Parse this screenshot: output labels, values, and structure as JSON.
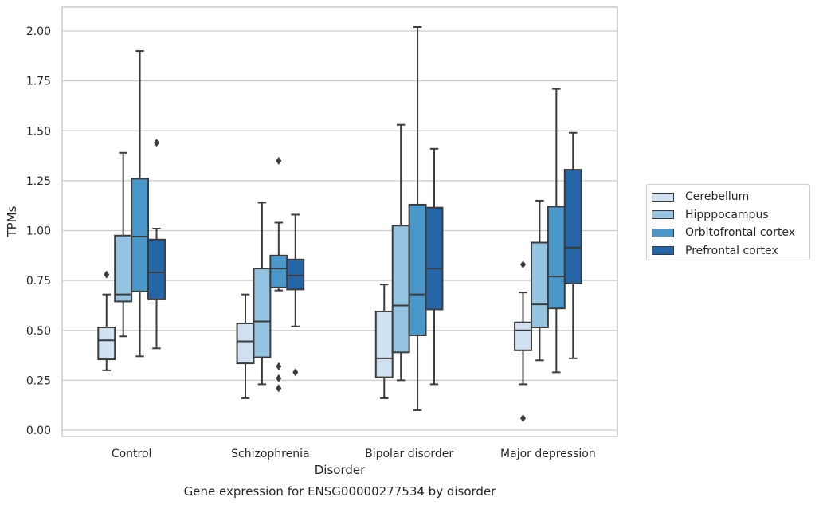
{
  "chart_data": {
    "type": "box",
    "title": "Gene expression for ENSG00000277534 by disorder",
    "xlabel": "Disorder",
    "ylabel": "TPMs",
    "ylim": [
      -0.03,
      2.12
    ],
    "yticks": [
      "0.00",
      "0.25",
      "0.50",
      "0.75",
      "1.00",
      "1.25",
      "1.50",
      "1.75",
      "2.00"
    ],
    "categories": [
      "Control",
      "Schizophrenia",
      "Bipolar disorder",
      "Major depression"
    ],
    "grid": "horizontal",
    "legend_placement": "right, outside",
    "series": [
      {
        "name": "Cerebellum",
        "color": "#d0e1f2",
        "boxes": [
          {
            "whislo": 0.3,
            "q1": 0.355,
            "med": 0.45,
            "q3": 0.515,
            "whishi": 0.68,
            "fliers": [
              0.78
            ]
          },
          {
            "whislo": 0.16,
            "q1": 0.335,
            "med": 0.445,
            "q3": 0.535,
            "whishi": 0.68,
            "fliers": []
          },
          {
            "whislo": 0.16,
            "q1": 0.265,
            "med": 0.36,
            "q3": 0.595,
            "whishi": 0.73,
            "fliers": []
          },
          {
            "whislo": 0.23,
            "q1": 0.4,
            "med": 0.5,
            "q3": 0.54,
            "whishi": 0.69,
            "fliers": [
              0.06,
              0.83
            ]
          }
        ]
      },
      {
        "name": "Hipppocampus",
        "color": "#94c4df",
        "boxes": [
          {
            "whislo": 0.47,
            "q1": 0.645,
            "med": 0.68,
            "q3": 0.975,
            "whishi": 1.39,
            "fliers": []
          },
          {
            "whislo": 0.23,
            "q1": 0.365,
            "med": 0.545,
            "q3": 0.81,
            "whishi": 1.14,
            "fliers": []
          },
          {
            "whislo": 0.25,
            "q1": 0.39,
            "med": 0.625,
            "q3": 1.025,
            "whishi": 1.53,
            "fliers": []
          },
          {
            "whislo": 0.35,
            "q1": 0.515,
            "med": 0.63,
            "q3": 0.94,
            "whishi": 1.15,
            "fliers": []
          }
        ]
      },
      {
        "name": "Orbitofrontal cortex",
        "color": "#4a98c9",
        "boxes": [
          {
            "whislo": 0.37,
            "q1": 0.695,
            "med": 0.97,
            "q3": 1.26,
            "whishi": 1.9,
            "fliers": []
          },
          {
            "whislo": 0.7,
            "q1": 0.715,
            "med": 0.81,
            "q3": 0.875,
            "whishi": 1.04,
            "fliers": [
              0.21,
              0.26,
              0.32,
              1.35
            ]
          },
          {
            "whislo": 0.1,
            "q1": 0.475,
            "med": 0.68,
            "q3": 1.13,
            "whishi": 2.02,
            "fliers": []
          },
          {
            "whislo": 0.29,
            "q1": 0.61,
            "med": 0.77,
            "q3": 1.12,
            "whishi": 1.71,
            "fliers": []
          }
        ]
      },
      {
        "name": "Prefrontal cortex",
        "color": "#2566a8",
        "boxes": [
          {
            "whislo": 0.41,
            "q1": 0.655,
            "med": 0.79,
            "q3": 0.955,
            "whishi": 1.01,
            "fliers": [
              1.44
            ]
          },
          {
            "whislo": 0.52,
            "q1": 0.705,
            "med": 0.775,
            "q3": 0.855,
            "whishi": 1.08,
            "fliers": [
              0.29
            ]
          },
          {
            "whislo": 0.23,
            "q1": 0.605,
            "med": 0.81,
            "q3": 1.115,
            "whishi": 1.41,
            "fliers": []
          },
          {
            "whislo": 0.36,
            "q1": 0.735,
            "med": 0.915,
            "q3": 1.305,
            "whishi": 1.49,
            "fliers": []
          }
        ]
      }
    ]
  }
}
